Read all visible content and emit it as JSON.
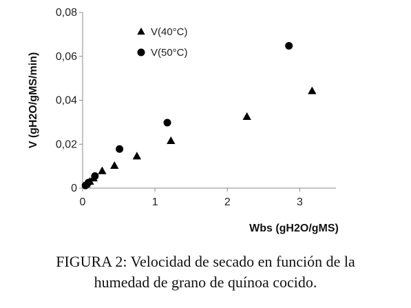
{
  "chart_data": {
    "type": "scatter",
    "xlabel": "Wbs (gH2O/gMS)",
    "ylabel": "V (gH2O/gMS/min)",
    "xlim": [
      0,
      3.5
    ],
    "ylim": [
      0,
      0.08
    ],
    "x_ticks": [
      "0",
      "1",
      "2",
      "3"
    ],
    "y_ticks": [
      "0",
      "0,02",
      "0,04",
      "0,06",
      "0,08"
    ],
    "grid": false,
    "legend_position": "top-left",
    "series": [
      {
        "name": "V(40°C)",
        "marker": "triangle",
        "color": "#000000",
        "points": [
          {
            "x": 0.05,
            "y": 0.0018
          },
          {
            "x": 0.1,
            "y": 0.003
          },
          {
            "x": 0.15,
            "y": 0.0045
          },
          {
            "x": 0.27,
            "y": 0.0078
          },
          {
            "x": 0.44,
            "y": 0.0102
          },
          {
            "x": 0.75,
            "y": 0.0145
          },
          {
            "x": 1.22,
            "y": 0.0215
          },
          {
            "x": 2.27,
            "y": 0.0325
          },
          {
            "x": 3.17,
            "y": 0.0442
          }
        ]
      },
      {
        "name": "V(50°C)",
        "marker": "circle",
        "color": "#000000",
        "points": [
          {
            "x": 0.04,
            "y": 0.0012
          },
          {
            "x": 0.08,
            "y": 0.0025
          },
          {
            "x": 0.17,
            "y": 0.0055
          },
          {
            "x": 0.51,
            "y": 0.0178
          },
          {
            "x": 1.17,
            "y": 0.0298
          },
          {
            "x": 2.85,
            "y": 0.0648
          }
        ]
      }
    ]
  },
  "caption": {
    "line1": "FIGURA 2: Velocidad de secado en función de la",
    "line2": "humedad de grano de quínoa cocido."
  }
}
